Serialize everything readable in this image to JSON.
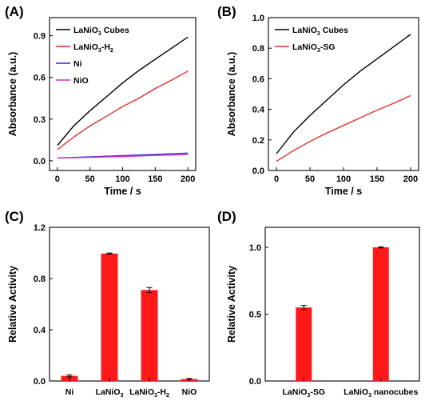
{
  "colors": {
    "black": "#000000",
    "red": "#e8302a",
    "blue": "#2a2ad4",
    "magenta": "#d42ad4",
    "bar": "#ff1a1a"
  },
  "chart_data": [
    {
      "panel": "(A)",
      "type": "line",
      "xlabel": "Time / s",
      "ylabel": "Absorbance (a.u.)",
      "xlim": [
        -12,
        212
      ],
      "ylim": [
        -0.07,
        1.03
      ],
      "xticks": [
        "0",
        "50",
        "100",
        "150",
        "200"
      ],
      "yticks": [
        "0.0",
        "0.3",
        "0.6",
        "0.9"
      ],
      "legend_position": "top-left",
      "series": [
        {
          "name": "LaNiO",
          "sub": "3",
          "suffix": " Cubes",
          "color": "#000000",
          "x": [
            0,
            25,
            50,
            75,
            100,
            125,
            150,
            175,
            200
          ],
          "y": [
            0.11,
            0.25,
            0.36,
            0.46,
            0.56,
            0.65,
            0.73,
            0.81,
            0.89
          ]
        },
        {
          "name": "LaNiO",
          "sub": "3",
          "suffix": "-H",
          "sub2": "2",
          "color": "#e8302a",
          "x": [
            0,
            25,
            50,
            75,
            100,
            125,
            150,
            175,
            200
          ],
          "y": [
            0.08,
            0.17,
            0.25,
            0.32,
            0.39,
            0.45,
            0.52,
            0.58,
            0.645
          ]
        },
        {
          "name": "Ni",
          "color": "#2a2ad4",
          "x": [
            0,
            50,
            100,
            150,
            200
          ],
          "y": [
            0.02,
            0.028,
            0.037,
            0.046,
            0.055
          ]
        },
        {
          "name": "NiO",
          "color": "#d42ad4",
          "x": [
            0,
            50,
            100,
            150,
            200
          ],
          "y": [
            0.02,
            0.025,
            0.031,
            0.038,
            0.044
          ]
        }
      ]
    },
    {
      "panel": "(B)",
      "type": "line",
      "xlabel": "Time / s",
      "ylabel": "Absorbance (a.u.)",
      "xlim": [
        -12,
        212
      ],
      "ylim": [
        0.0,
        1.0
      ],
      "xticks": [
        "0",
        "50",
        "100",
        "150",
        "200"
      ],
      "yticks": [
        "0.0",
        "0.2",
        "0.4",
        "0.6",
        "0.8",
        "1.0"
      ],
      "legend_position": "top-left",
      "series": [
        {
          "name": "LaNiO",
          "sub": "3",
          "suffix": " Cubes",
          "color": "#000000",
          "x": [
            0,
            25,
            50,
            75,
            100,
            125,
            150,
            175,
            200
          ],
          "y": [
            0.11,
            0.25,
            0.36,
            0.46,
            0.56,
            0.65,
            0.73,
            0.81,
            0.89
          ]
        },
        {
          "name": "LaNiO",
          "sub": "3",
          "suffix": "-SG",
          "color": "#e8302a",
          "x": [
            0,
            25,
            50,
            75,
            100,
            125,
            150,
            175,
            200
          ],
          "y": [
            0.06,
            0.13,
            0.19,
            0.245,
            0.295,
            0.345,
            0.395,
            0.44,
            0.49
          ]
        }
      ]
    },
    {
      "panel": "(C)",
      "type": "bar",
      "ylabel": "Relative Activity",
      "ylim": [
        0.0,
        1.2
      ],
      "yticks": [
        "0.0",
        "0.4",
        "0.8",
        "1.2"
      ],
      "categories": [
        {
          "name": "Ni"
        },
        {
          "name": "LaNiO",
          "sub": "3"
        },
        {
          "name": "LaNiO",
          "sub": "3",
          "suffix": "-H",
          "sub2": "2"
        },
        {
          "name": "NiO"
        }
      ],
      "values": [
        0.04,
        0.995,
        0.71,
        0.015
      ],
      "errors": [
        0.008,
        0.004,
        0.02,
        0.006
      ]
    },
    {
      "panel": "(D)",
      "type": "bar",
      "ylabel": "Relative Activity",
      "ylim": [
        0.0,
        1.15
      ],
      "yticks": [
        "0.0",
        "0.5",
        "1.0"
      ],
      "categories": [
        {
          "name": "LaNiO",
          "sub": "3",
          "suffix": "-SG"
        },
        {
          "name": "LaNiO",
          "sub": "3",
          "suffix": " nanocubes"
        }
      ],
      "values": [
        0.55,
        1.0
      ],
      "errors": [
        0.015,
        0.004
      ]
    }
  ]
}
